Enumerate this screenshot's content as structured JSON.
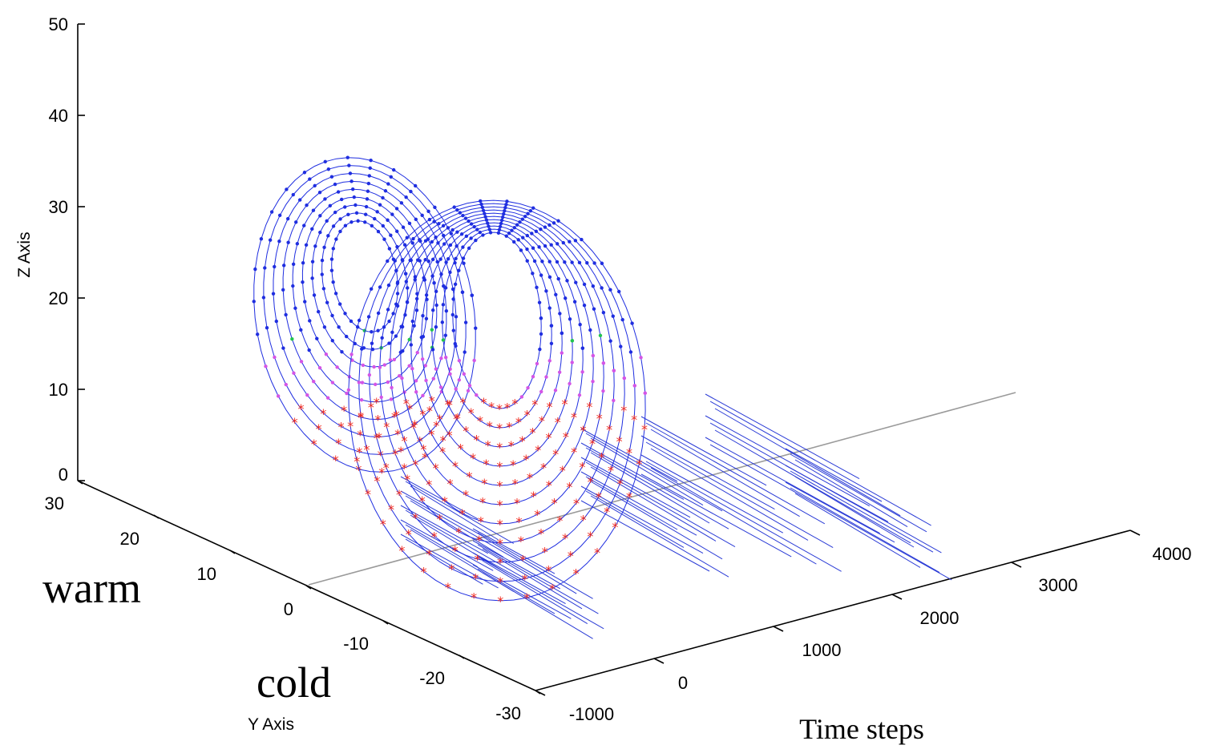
{
  "chart_data": {
    "type": "line",
    "subtype": "3d-trajectory-with-time-series",
    "title": "",
    "axes": {
      "z": {
        "label": "Z Axis",
        "ticks": [
          0,
          10,
          20,
          30,
          40,
          50
        ],
        "range": [
          0,
          50
        ]
      },
      "y": {
        "label": "Y Axis",
        "ticks": [
          30,
          20,
          10,
          0,
          -10,
          -20,
          -30
        ],
        "range": [
          -30,
          30
        ]
      },
      "t": {
        "label": "Time steps",
        "ticks": [
          -1000,
          0,
          1000,
          2000,
          3000,
          4000
        ],
        "range": [
          -1000,
          4000
        ]
      }
    },
    "annotations": [
      "warm",
      "cold"
    ],
    "series": [
      {
        "marker": "dot",
        "color": "#1f2ee0"
      },
      {
        "marker": "dot",
        "color": "#d455e6"
      },
      {
        "marker": "dot",
        "color": "#22c44e"
      },
      {
        "marker": "asterisk",
        "color": "#f0281c"
      }
    ],
    "time_series_projection_color": "#2a3bd6",
    "zero_line_color": "#9a9a9a",
    "grid": false
  }
}
